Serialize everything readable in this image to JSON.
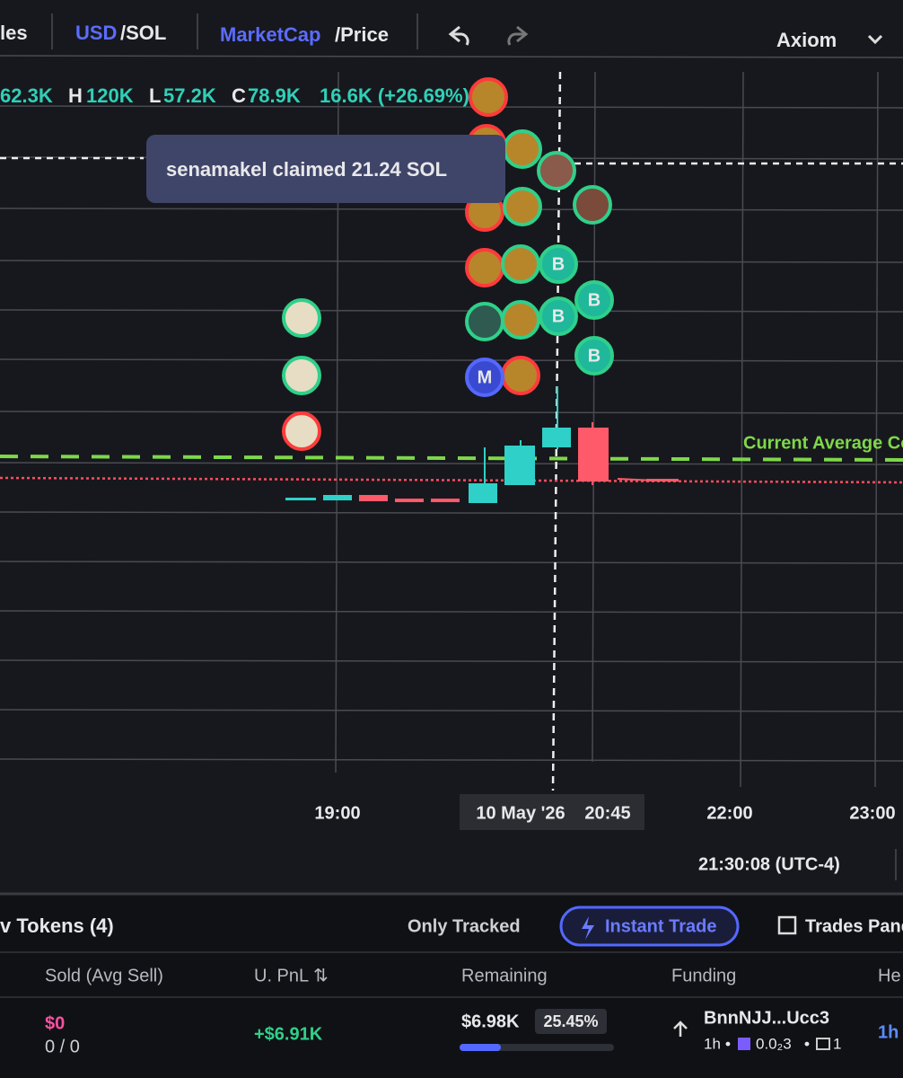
{
  "toolbar": {
    "chart_style": "les",
    "currency": "USD",
    "currency_alt": "/SOL",
    "metric": "MarketCap",
    "metric_alt": "/Price",
    "platform": "Axiom"
  },
  "ohlc": {
    "open": "62.3K",
    "high_label": "H",
    "high": "120K",
    "low_label": "L",
    "low": "57.2K",
    "close_label": "C",
    "close": "78.9K",
    "change": "16.6K (+26.69%)"
  },
  "tooltip": "senamakel claimed 21.24 SOL",
  "average_line_label": "Current Average Co",
  "avatars": {
    "buy": "B",
    "migrate": "M"
  },
  "time_axis": {
    "labels": [
      "19:00",
      "20:45",
      "22:00",
      "23:00"
    ],
    "crosshair_date": "10 May '26",
    "clock": "21:30:08 (UTC-4)"
  },
  "panel": {
    "tab": "v Tokens (4)",
    "only_tracked": "Only Tracked",
    "instant_trade": "Instant Trade",
    "trades_panel": "Trades Pane",
    "columns": [
      "Sold (Avg Sell)",
      "U. PnL ⇅",
      "Remaining",
      "Funding",
      "He"
    ],
    "row": {
      "sold": "$0",
      "sold_count": "0 / 0",
      "pnl": "+$6.91K",
      "remaining": "$6.98K",
      "remaining_pct": "25.45%",
      "funding": "BnnNJJ...Ucc3",
      "funding_age": "1h",
      "funding_amount": "0.0₂3",
      "funding_count": "1",
      "age": "1h"
    }
  }
}
